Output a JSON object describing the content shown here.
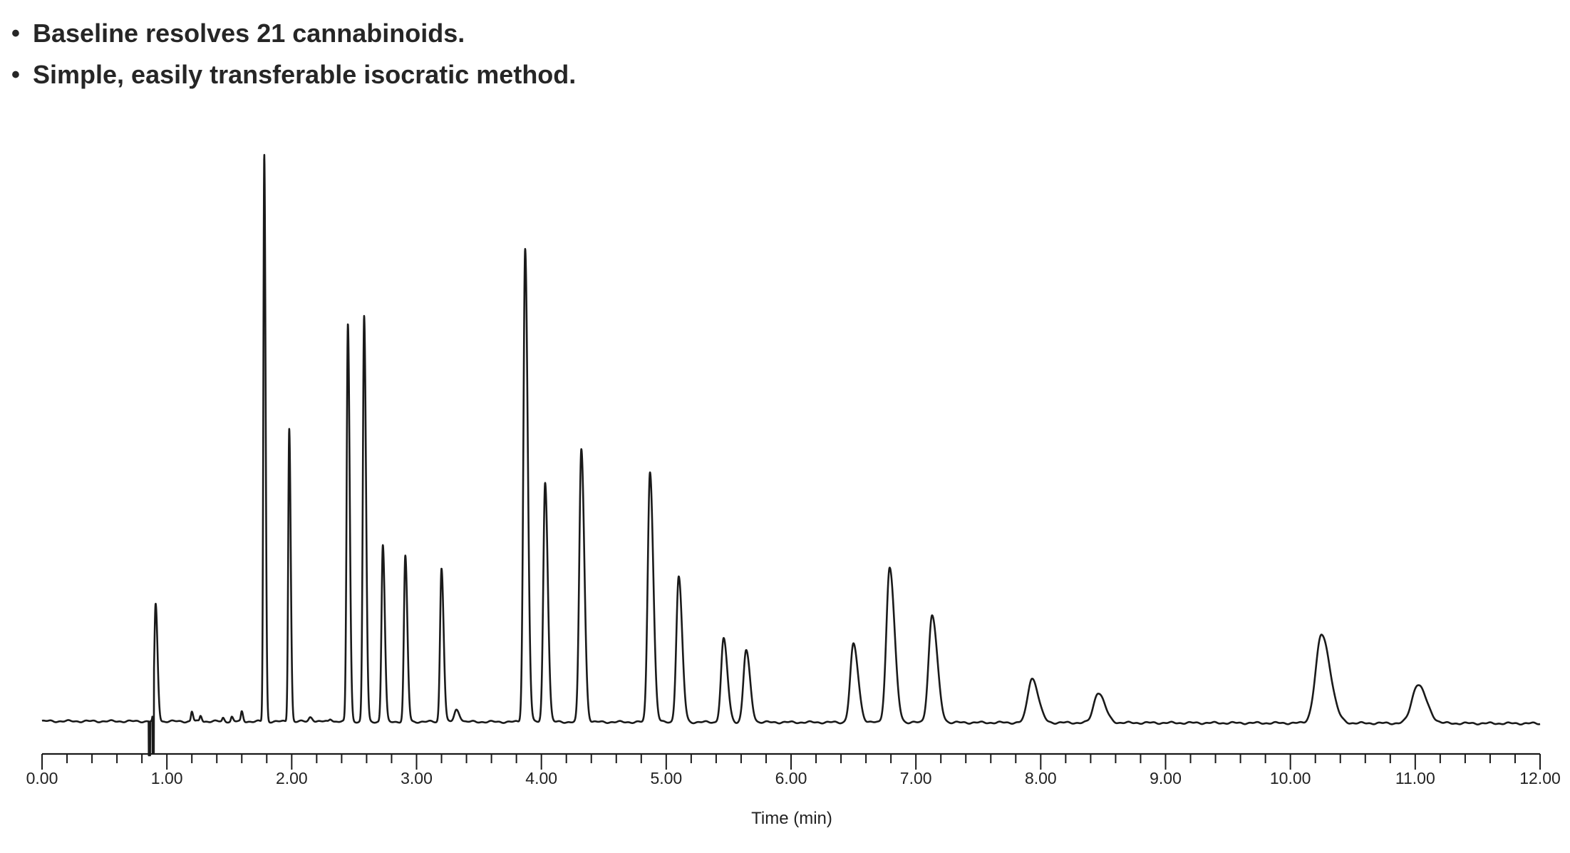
{
  "bullets": [
    "Baseline resolves 21 cannabinoids.",
    "Simple, easily transferable isocratic method."
  ],
  "chart_data": {
    "type": "line",
    "title": "",
    "xlabel": "Time (min)",
    "ylabel": "",
    "xlim": [
      0,
      12
    ],
    "ylim": [
      0,
      1
    ],
    "x_ticks": [
      "0.00",
      "1.00",
      "2.00",
      "3.00",
      "4.00",
      "5.00",
      "6.00",
      "7.00",
      "8.00",
      "9.00",
      "10.00",
      "11.00",
      "12.00"
    ],
    "y_axis_visible": false,
    "grid": false,
    "line_color": "#1a1a1a",
    "void_dip_time": 0.86,
    "peaks": [
      {
        "t": 0.91,
        "h": 0.205,
        "w": 0.012
      },
      {
        "t": 1.2,
        "h": 0.017,
        "w": 0.008
      },
      {
        "t": 1.27,
        "h": 0.01,
        "w": 0.008
      },
      {
        "t": 1.45,
        "h": 0.006,
        "w": 0.008
      },
      {
        "t": 1.52,
        "h": 0.008,
        "w": 0.008
      },
      {
        "t": 1.6,
        "h": 0.017,
        "w": 0.008
      },
      {
        "t": 1.78,
        "h": 0.995,
        "w": 0.0085
      },
      {
        "t": 1.98,
        "h": 0.515,
        "w": 0.0095
      },
      {
        "t": 2.15,
        "h": 0.008,
        "w": 0.015
      },
      {
        "t": 2.31,
        "h": 0.005,
        "w": 0.012
      },
      {
        "t": 2.45,
        "h": 0.698,
        "w": 0.0115
      },
      {
        "t": 2.58,
        "h": 0.711,
        "w": 0.012
      },
      {
        "t": 2.73,
        "h": 0.31,
        "w": 0.0125
      },
      {
        "t": 2.91,
        "h": 0.29,
        "w": 0.013
      },
      {
        "t": 3.2,
        "h": 0.27,
        "w": 0.0135
      },
      {
        "t": 3.32,
        "h": 0.021,
        "w": 0.02
      },
      {
        "t": 3.87,
        "h": 0.83,
        "w": 0.0165
      },
      {
        "t": 4.03,
        "h": 0.421,
        "w": 0.017
      },
      {
        "t": 4.32,
        "h": 0.479,
        "w": 0.019
      },
      {
        "t": 4.87,
        "h": 0.44,
        "w": 0.021
      },
      {
        "t": 5.1,
        "h": 0.255,
        "w": 0.022
      },
      {
        "t": 5.46,
        "h": 0.146,
        "w": 0.024
      },
      {
        "t": 5.64,
        "h": 0.126,
        "w": 0.025
      },
      {
        "t": 6.5,
        "h": 0.137,
        "w": 0.03
      },
      {
        "t": 6.79,
        "h": 0.272,
        "w": 0.031
      },
      {
        "t": 7.13,
        "h": 0.188,
        "w": 0.033
      },
      {
        "t": 7.93,
        "h": 0.078,
        "w": 0.04
      },
      {
        "t": 8.46,
        "h": 0.053,
        "w": 0.042
      },
      {
        "t": 10.25,
        "h": 0.155,
        "w": 0.055
      },
      {
        "t": 11.02,
        "h": 0.068,
        "w": 0.055
      }
    ]
  }
}
